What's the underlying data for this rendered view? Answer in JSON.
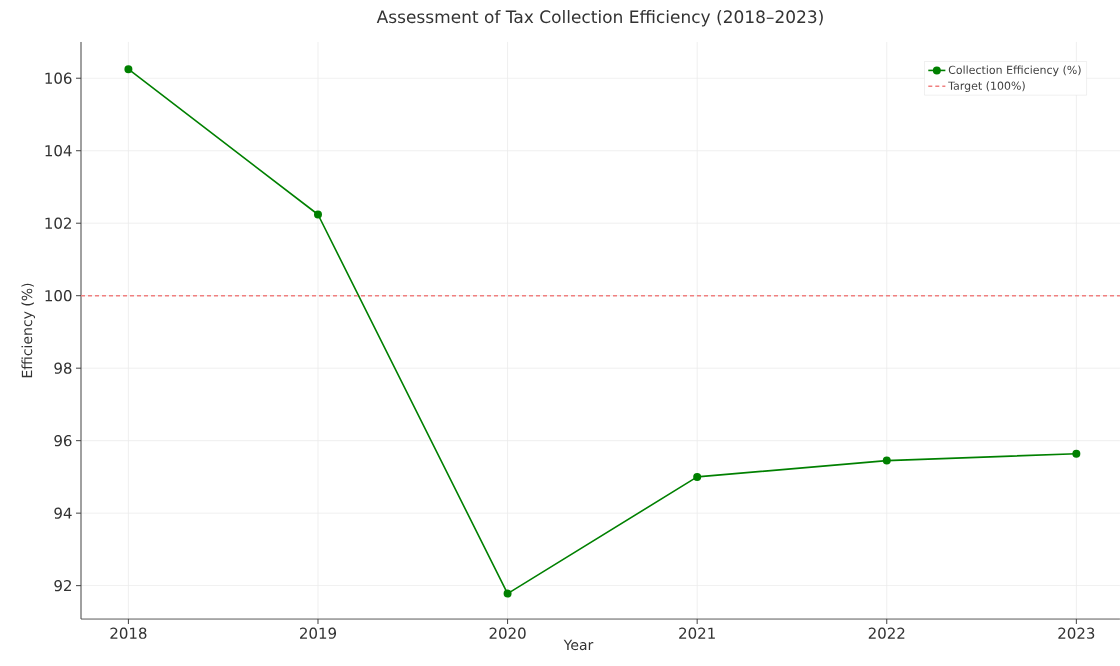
{
  "chart_data": {
    "type": "line",
    "title": "Assessment of Tax Collection Efficiency (2018–2023)",
    "xlabel": "Year",
    "ylabel": "Efficiency (%)",
    "x": [
      2018,
      2019,
      2020,
      2021,
      2022,
      2023
    ],
    "series": [
      {
        "name": "Collection Efficiency (%)",
        "color": "#008000",
        "values": [
          106.25,
          102.24,
          91.78,
          95.0,
          95.45,
          95.64
        ]
      }
    ],
    "ref_lines": [
      {
        "axis": "y",
        "value": 100,
        "label": "Target (100%)",
        "color": "#f08080",
        "line_style": "dashed"
      }
    ],
    "xlim": [
      2017.75,
      2023.23
    ],
    "ylim": [
      91.08,
      107.0
    ],
    "xticks": [
      2018,
      2019,
      2020,
      2021,
      2022,
      2023
    ],
    "yticks": [
      92,
      94,
      96,
      98,
      100,
      102,
      104,
      106
    ],
    "grid": true,
    "legend": "top right",
    "marker": "circle",
    "line_style": "solid"
  }
}
